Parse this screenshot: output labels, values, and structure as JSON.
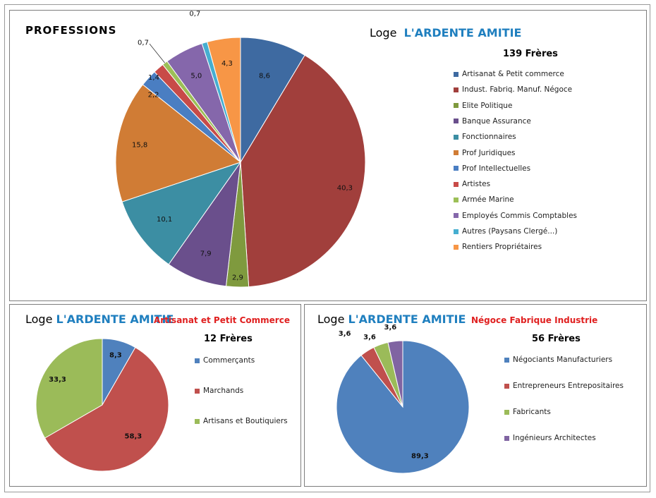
{
  "chart_data": [
    {
      "type": "pie",
      "id": "main",
      "title": "PROFESSIONS",
      "loge_prefix": "Loge",
      "loge_name": "L'ARDENTE AMITIE",
      "count_label": "139 Frères",
      "categories": [
        "Artisanat & Petit commerce",
        "Indust. Fabriq. Manuf. Négoce",
        "Elite Politique",
        "Banque Assurance",
        "Fonctionnaires",
        "Prof Juridiques",
        "Prof Intellectuelles",
        "Artistes",
        "Armée Marine",
        "Employés Commis Comptables",
        "Autres (Paysans Clergé...)",
        "Rentiers Propriétaires"
      ],
      "values": [
        8.6,
        40.3,
        2.9,
        7.9,
        10.1,
        15.8,
        2.2,
        1.4,
        0.7,
        5.0,
        0.7,
        4.3
      ],
      "data_labels": [
        "8,6",
        "40,3",
        "2,9",
        "7,9",
        "10,1",
        "15,8",
        "2,2",
        "1,4",
        "0,7",
        "5,0",
        "0,7",
        "4,3"
      ],
      "colors": [
        "#3e6aa1",
        "#a13f3c",
        "#7f9a3e",
        "#6a4f8c",
        "#3c8ea3",
        "#d07c35",
        "#4a7ec2",
        "#c84b48",
        "#9cbf57",
        "#8567ab",
        "#46aed0",
        "#f79646"
      ],
      "legend_position": "right"
    },
    {
      "type": "pie",
      "id": "artisanat",
      "loge_prefix": "Loge",
      "loge_name": "L'ARDENTE AMITIE",
      "subtitle": "Artisanat et Petit Commerce",
      "count_label": "12 Frères",
      "categories": [
        "Commerçants",
        "Marchands",
        "Artisans et Boutiquiers"
      ],
      "values": [
        8.3,
        58.3,
        33.3
      ],
      "data_labels": [
        "8,3",
        "58,3",
        "33,3"
      ],
      "colors": [
        "#4f81bd",
        "#c0504d",
        "#9bbb59"
      ],
      "legend_position": "right"
    },
    {
      "type": "pie",
      "id": "negoce",
      "loge_prefix": "Loge",
      "loge_name": "L'ARDENTE AMITIE",
      "subtitle": "Négoce Fabrique Industrie",
      "count_label": "56 Frères",
      "categories": [
        "Négociants Manufacturiers",
        "Entrepreneurs Entrepositaires",
        "Fabricants",
        "Ingénieurs Architectes"
      ],
      "values": [
        89.3,
        3.6,
        3.6,
        3.6
      ],
      "data_labels": [
        "89,3",
        "3,6",
        "3,6",
        "3,6"
      ],
      "colors": [
        "#4f81bd",
        "#c0504d",
        "#9bbb59",
        "#8064a2"
      ],
      "legend_position": "right"
    }
  ]
}
